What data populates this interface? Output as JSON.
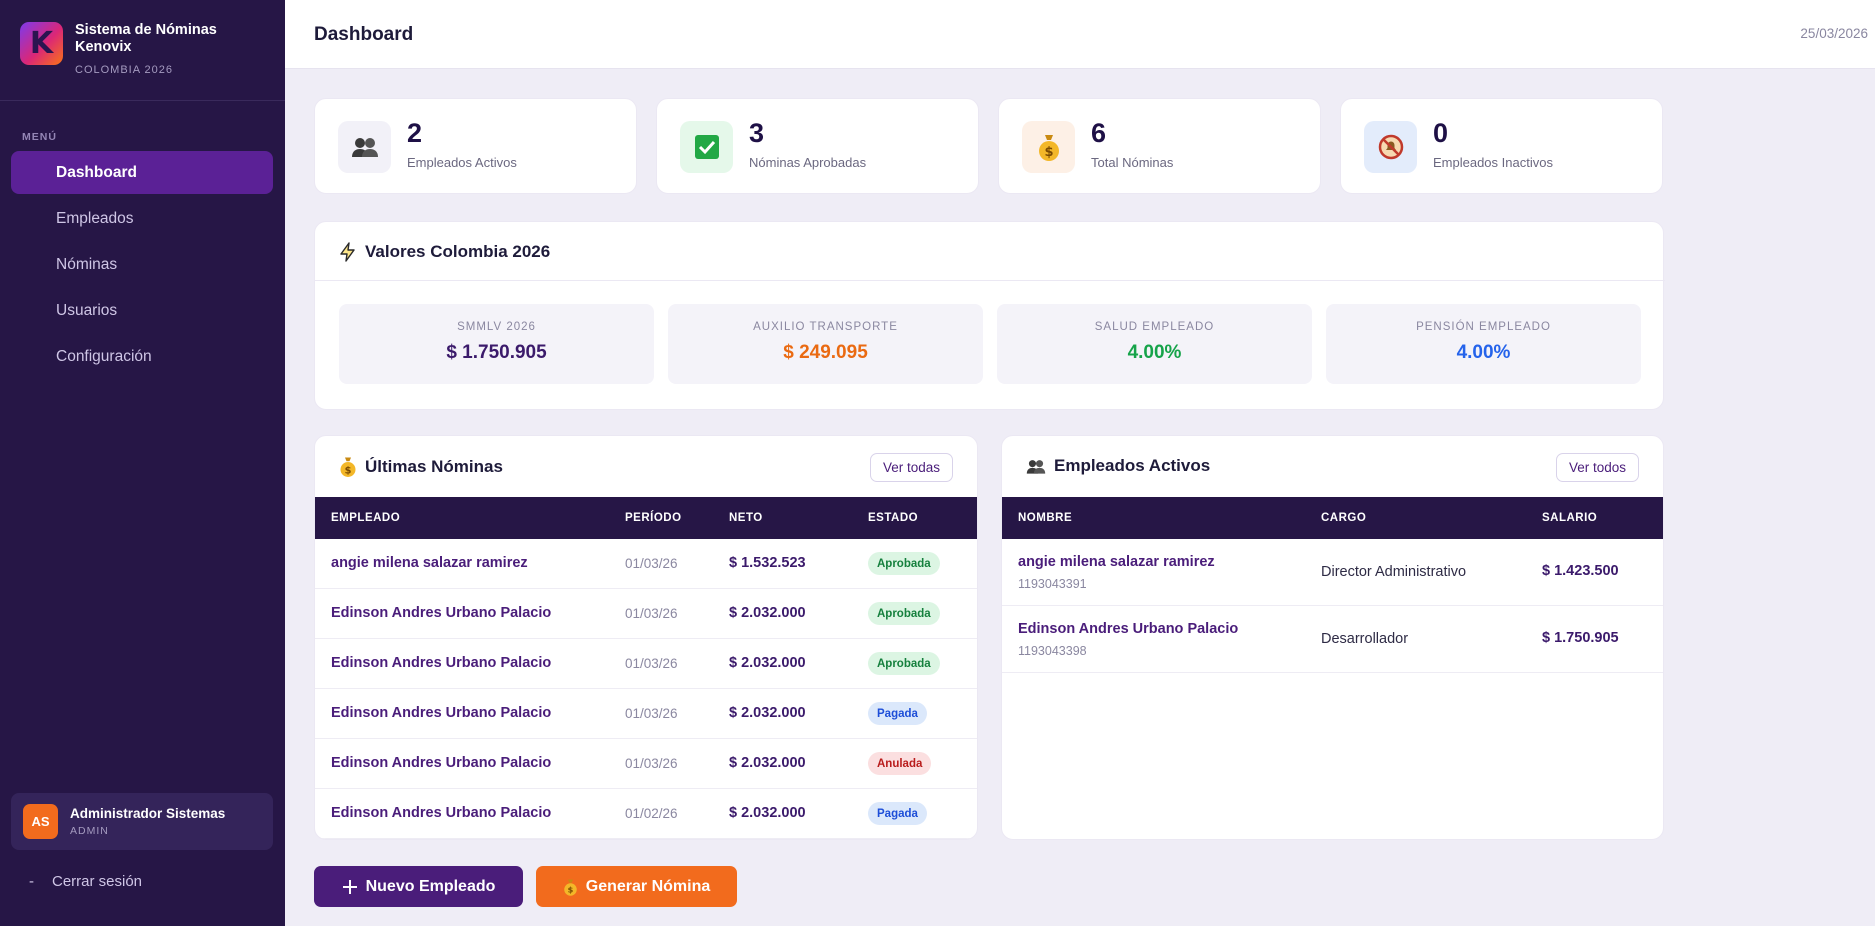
{
  "brand": {
    "title": "Sistema de Nóminas Kenovix",
    "subtitle": "COLOMBIA 2026",
    "logo_letter": "K"
  },
  "sidebar": {
    "menu_label": "MENÚ",
    "items": [
      {
        "label": "Dashboard",
        "active": true
      },
      {
        "label": "Empleados"
      },
      {
        "label": "Nóminas"
      },
      {
        "label": "Usuarios"
      },
      {
        "label": "Configuración"
      }
    ],
    "user": {
      "initials": "AS",
      "name": "Administrador Sistemas",
      "role": "ADMIN"
    },
    "logout": {
      "icon": "-",
      "label": "Cerrar sesión"
    }
  },
  "header": {
    "title": "Dashboard",
    "date": "25/03/2026"
  },
  "stats": [
    {
      "value": "2",
      "label": "Empleados Activos",
      "icon": "people-icon",
      "bg": "#f2f1f8"
    },
    {
      "value": "3",
      "label": "Nóminas Aprobadas",
      "icon": "check-icon",
      "bg": "#e5f8ea"
    },
    {
      "value": "6",
      "label": "Total Nóminas",
      "icon": "money-bag-icon",
      "bg": "#fdf0e6"
    },
    {
      "value": "0",
      "label": "Empleados Inactivos",
      "icon": "bell-off-icon",
      "bg": "#e3ecfb"
    }
  ],
  "valores": {
    "title": "Valores Colombia 2026",
    "items": [
      {
        "label": "SMMLV 2026",
        "value": "$ 1.750.905",
        "color": "#3b1a6b"
      },
      {
        "label": "AUXILIO TRANSPORTE",
        "value": "$ 249.095",
        "color": "#ea6a12"
      },
      {
        "label": "SALUD EMPLEADO",
        "value": "4.00%",
        "color": "#16a34a"
      },
      {
        "label": "PENSIÓN EMPLEADO",
        "value": "4.00%",
        "color": "#2563eb"
      }
    ]
  },
  "nominas": {
    "title": "Últimas Nóminas",
    "view_all": "Ver todas",
    "columns": [
      "EMPLEADO",
      "PERÍODO",
      "NETO",
      "ESTADO"
    ],
    "rows": [
      {
        "empleado": "angie milena salazar ramirez",
        "periodo": "01/03/26",
        "neto": "$ 1.532.523",
        "estado": "Aprobada"
      },
      {
        "empleado": "Edinson Andres Urbano Palacio",
        "periodo": "01/03/26",
        "neto": "$ 2.032.000",
        "estado": "Aprobada"
      },
      {
        "empleado": "Edinson Andres Urbano Palacio",
        "periodo": "01/03/26",
        "neto": "$ 2.032.000",
        "estado": "Aprobada"
      },
      {
        "empleado": "Edinson Andres Urbano Palacio",
        "periodo": "01/03/26",
        "neto": "$ 2.032.000",
        "estado": "Pagada"
      },
      {
        "empleado": "Edinson Andres Urbano Palacio",
        "periodo": "01/03/26",
        "neto": "$ 2.032.000",
        "estado": "Anulada"
      },
      {
        "empleado": "Edinson Andres Urbano Palacio",
        "periodo": "01/02/26",
        "neto": "$ 2.032.000",
        "estado": "Pagada"
      }
    ],
    "status_colors": {
      "Aprobada": {
        "bg": "#dcf5e3",
        "fg": "#15803d"
      },
      "Pagada": {
        "bg": "#dbe8fb",
        "fg": "#1d4ed8"
      },
      "Anulada": {
        "bg": "#fbdfe0",
        "fg": "#b91c1c"
      }
    }
  },
  "empleados": {
    "title": "Empleados Activos",
    "view_all": "Ver todos",
    "columns": [
      "NOMBRE",
      "CARGO",
      "SALARIO"
    ],
    "rows": [
      {
        "nombre": "angie milena salazar ramirez",
        "documento": "1193043391",
        "cargo": "Director Administrativo",
        "salario": "$ 1.423.500"
      },
      {
        "nombre": "Edinson Andres Urbano Palacio",
        "documento": "1193043398",
        "cargo": "Desarrollador",
        "salario": "$ 1.750.905"
      }
    ]
  },
  "actions": {
    "nuevo_empleado": "Nuevo Empleado",
    "generar_nomina": "Generar Nómina"
  },
  "colors": {
    "primary": "#4a1d7a",
    "sidebar": "#261646",
    "accent": "#f97316"
  }
}
